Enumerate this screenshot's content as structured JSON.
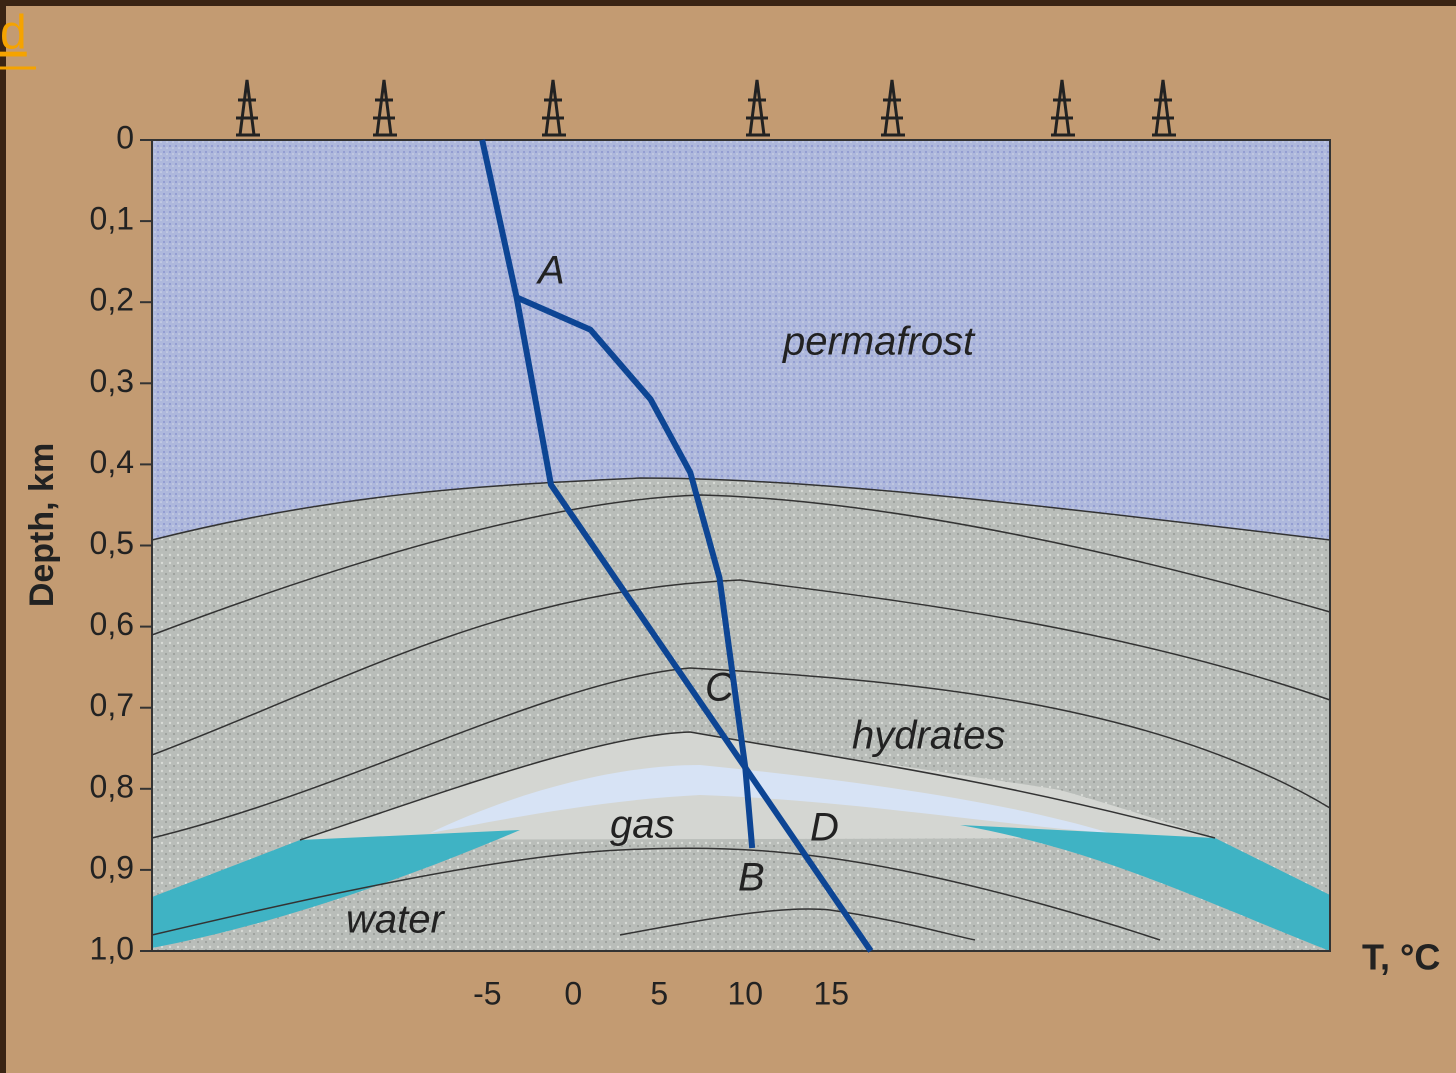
{
  "chart_data": {
    "type": "line",
    "corner_label": "d",
    "xlabel": "T, °C",
    "ylabel": "Depth, km",
    "xlim": [
      -24.5,
      44.0
    ],
    "ylim": [
      1.0,
      0
    ],
    "xticks": [
      -5,
      0,
      5,
      10,
      15
    ],
    "yticks": [
      0,
      {
        "value": 0.1,
        "label": "0,1"
      },
      {
        "value": 0.2,
        "label": "0,2"
      },
      {
        "value": 0.3,
        "label": "0,3"
      },
      {
        "value": 0.4,
        "label": "0,4"
      },
      {
        "value": 0.5,
        "label": "0,5"
      },
      {
        "value": 0.6,
        "label": "0,6"
      },
      {
        "value": 0.7,
        "label": "0,7"
      },
      {
        "value": 0.8,
        "label": "0,8"
      },
      {
        "value": 0.9,
        "label": "0,9"
      },
      {
        "value": 1.0,
        "label": "1,0"
      }
    ],
    "annotations": [
      "A",
      "B",
      "C",
      "D",
      "permafrost",
      "hydrates",
      "gas",
      "water"
    ],
    "series": [
      {
        "color": "#0d4594",
        "x": [
          -5.3,
          -3.3,
          -1.3,
          10.0,
          17.3
        ],
        "values": [
          0,
          0.194,
          0.425,
          0.774,
          1.0
        ]
      },
      {
        "color": "#0d4594",
        "x": [
          -3.3,
          1.0,
          4.5,
          6.8,
          8.5,
          10.0,
          10.4
        ],
        "values": [
          0.194,
          0.234,
          0.32,
          0.41,
          0.54,
          0.774,
          0.873
        ]
      }
    ]
  }
}
